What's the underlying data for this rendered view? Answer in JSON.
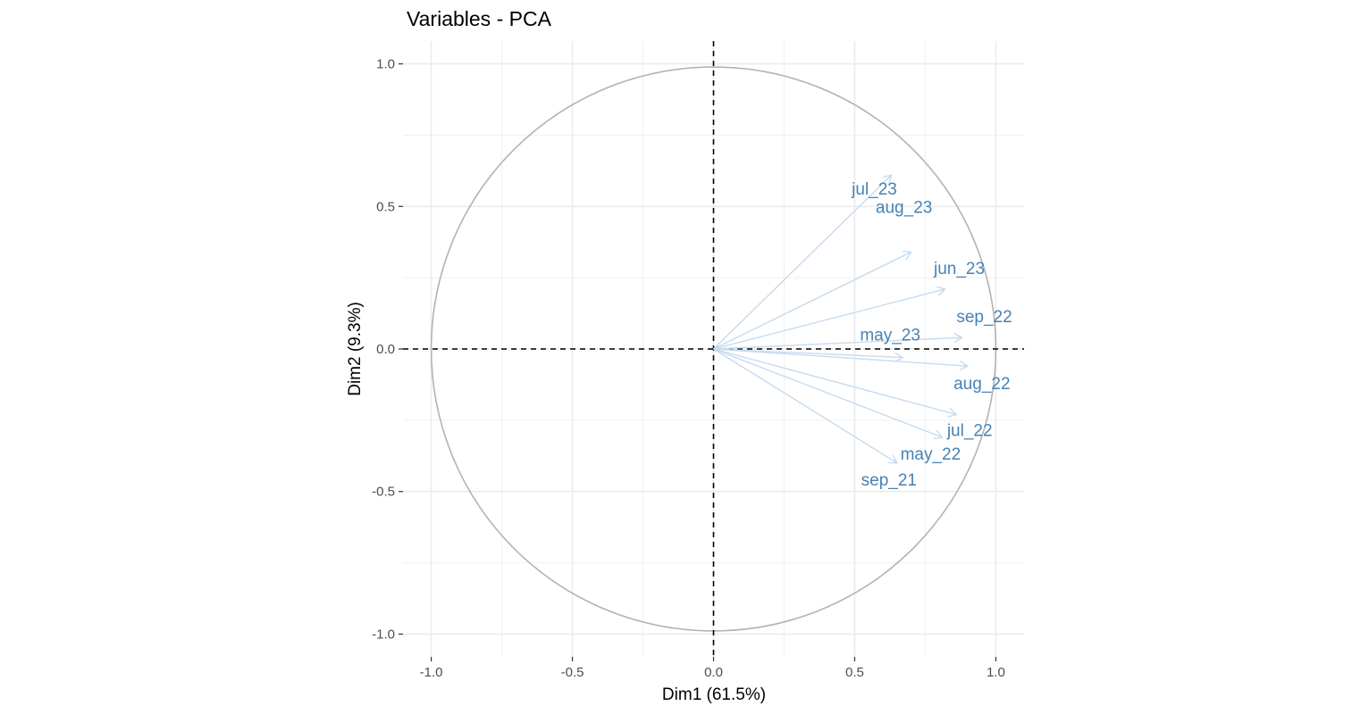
{
  "chart_data": {
    "type": "scatter",
    "title": "Variables - PCA",
    "xlabel": "Dim1 (61.5%)",
    "ylabel": "Dim2 (9.3%)",
    "xlim": [
      -1.1,
      1.1
    ],
    "ylim": [
      -1.08,
      1.08
    ],
    "x_ticks": [
      -1.0,
      -0.5,
      0.0,
      0.5,
      1.0
    ],
    "y_ticks": [
      -1.0,
      -0.5,
      0.0,
      0.5,
      1.0
    ],
    "x_tick_labels": [
      "-1.0",
      "-0.5",
      "0.0",
      "0.5",
      "1.0"
    ],
    "y_tick_labels": [
      "-1.0",
      "-0.5",
      "0.0",
      "0.5",
      "1.0"
    ],
    "grid": true,
    "correlation_circle": true,
    "reference_lines": [
      "x=0",
      "y=0"
    ],
    "arrow_color": "#c6dbef",
    "label_color": "#4682b4",
    "variables": [
      {
        "name": "jul_23",
        "x": 0.63,
        "y": 0.61
      },
      {
        "name": "aug_23",
        "x": 0.7,
        "y": 0.34
      },
      {
        "name": "jun_23",
        "x": 0.82,
        "y": 0.21
      },
      {
        "name": "sep_22",
        "x": 0.88,
        "y": 0.04
      },
      {
        "name": "may_23",
        "x": 0.67,
        "y": -0.03
      },
      {
        "name": "aug_22",
        "x": 0.9,
        "y": -0.06
      },
      {
        "name": "jul_22",
        "x": 0.86,
        "y": -0.23
      },
      {
        "name": "may_22",
        "x": 0.81,
        "y": -0.31
      },
      {
        "name": "sep_21",
        "x": 0.65,
        "y": -0.4
      }
    ]
  }
}
